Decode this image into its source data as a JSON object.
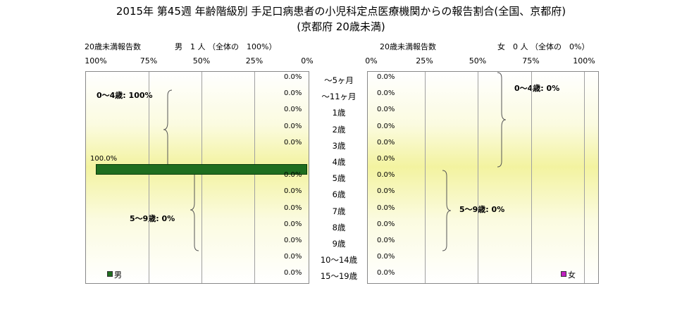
{
  "title": {
    "line1": "2015年 第45週 年齢階級別 手足口病患者の小児科定点医療機関からの報告割合(全国、京都府)",
    "line2": "(京都府 20歳未満)"
  },
  "male_panel": {
    "header_left": "20歳未満報告数",
    "header_right": "男　1 人 （全体の　100%）",
    "legend": "男",
    "group_upper": "0～4歳: 100%",
    "group_lower": "5～9歳: 0%",
    "bar_label": "100.0%"
  },
  "female_panel": {
    "header_left": "20歳未満報告数",
    "header_right": "女　0 人 （全体の　0%）",
    "legend": "女",
    "group_upper": "0～4歳: 0%",
    "group_lower": "5～9歳: 0%"
  },
  "colors": {
    "male": "#1f6e1f",
    "female": "#c020c0"
  },
  "chart_data": {
    "type": "bar",
    "orientation": "horizontal",
    "categories": [
      "～5ヶ月",
      "～11ヶ月",
      "1歳",
      "2歳",
      "3歳",
      "4歳",
      "5歳",
      "6歳",
      "7歳",
      "8歳",
      "9歳",
      "10～14歳",
      "15～19歳"
    ],
    "series": [
      {
        "name": "男",
        "values": [
          0,
          0,
          0,
          0,
          0,
          100,
          0,
          0,
          0,
          0,
          0,
          0,
          0
        ],
        "labels": [
          "0.0%",
          "0.0%",
          "0.0%",
          "0.0%",
          "0.0%",
          "100.0%",
          "0.0%",
          "0.0%",
          "0.0%",
          "0.0%",
          "0.0%",
          "0.0%",
          "0.0%"
        ]
      },
      {
        "name": "女",
        "values": [
          0,
          0,
          0,
          0,
          0,
          0,
          0,
          0,
          0,
          0,
          0,
          0,
          0
        ],
        "labels": [
          "0.0%",
          "0.0%",
          "0.0%",
          "0.0%",
          "0.0%",
          "0.0%",
          "0.0%",
          "0.0%",
          "0.0%",
          "0.0%",
          "0.0%",
          "0.0%",
          "0.0%"
        ]
      }
    ],
    "male_ticks": [
      "100%",
      "75%",
      "50%",
      "25%",
      "0%"
    ],
    "female_ticks": [
      "0%",
      "25%",
      "50%",
      "75%",
      "100%"
    ],
    "xlim": [
      0,
      100
    ]
  }
}
